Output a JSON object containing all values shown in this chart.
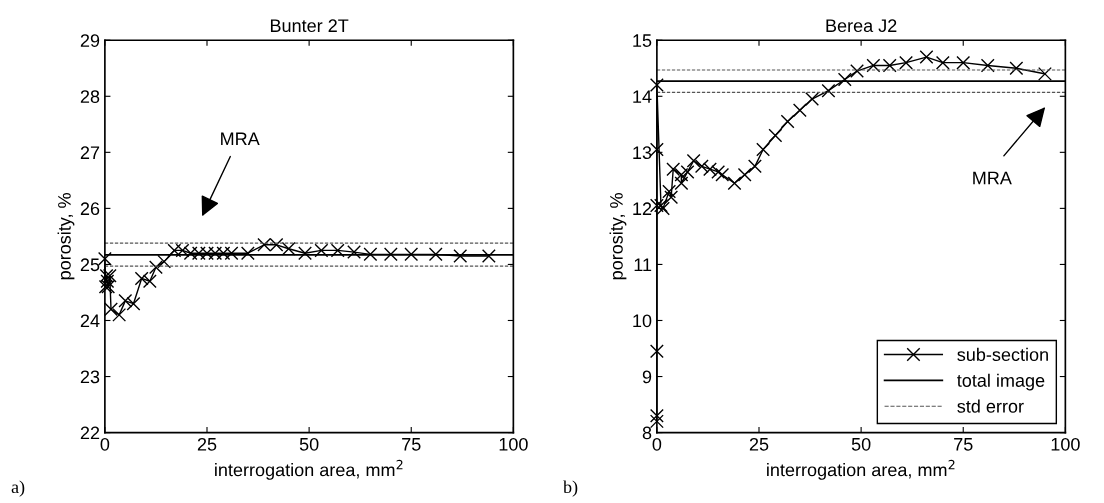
{
  "chart_data": [
    {
      "type": "line",
      "title": "Bunter 2T",
      "xlabel": "interrogation area, mm$^{2}$",
      "ylabel": "porosity, %",
      "marker": "cross",
      "grid": false,
      "legend": false,
      "xlim": [
        0,
        100
      ],
      "xticks": [
        0,
        25,
        50,
        75,
        100
      ],
      "ylim": [
        22,
        29
      ],
      "yticks": [
        22,
        23,
        24,
        25,
        26,
        27,
        28,
        29
      ],
      "series": [
        {
          "color": "#000000",
          "x": [
            0,
            0.2,
            0.4,
            0.6,
            0.8,
            1.2,
            1.5,
            3.5,
            5,
            7,
            9,
            11,
            12.5,
            14.5,
            17,
            19,
            21,
            23,
            25,
            27,
            29,
            31,
            35,
            39,
            42,
            45,
            49,
            53,
            57,
            61,
            65,
            70,
            75,
            81,
            87,
            94
          ],
          "values": [
            25.1,
            24.6,
            24.8,
            24.7,
            24.6,
            24.8,
            24.2,
            24.1,
            24.35,
            24.3,
            24.75,
            24.7,
            24.95,
            25.05,
            25.25,
            25.25,
            25.2,
            25.2,
            25.2,
            25.2,
            25.2,
            25.2,
            25.2,
            25.35,
            25.35,
            25.28,
            25.2,
            25.25,
            25.25,
            25.22,
            25.18,
            25.18,
            25.18,
            25.18,
            25.15,
            25.15
          ]
        }
      ],
      "ref_lines": [
        {
          "axis": "y",
          "value": 25.17,
          "color": "#000000",
          "line_style": "solid"
        },
        {
          "axis": "y",
          "value": 25.38,
          "color": "#555555",
          "line_style": "dashed"
        },
        {
          "axis": "y",
          "value": 24.97,
          "color": "#555555",
          "line_style": "dashed"
        }
      ],
      "annotations": [
        "MRA",
        "a)"
      ]
    },
    {
      "type": "line",
      "title": "Berea J2",
      "xlabel": "interrogation area, mm$^{2}$",
      "ylabel": "porosity, %",
      "marker": "cross",
      "grid": false,
      "legend": "bottom right",
      "xlim": [
        0,
        100
      ],
      "xticks": [
        0,
        25,
        50,
        75,
        100
      ],
      "ylim": [
        8,
        15
      ],
      "yticks": [
        8,
        9,
        10,
        11,
        12,
        13,
        14,
        15
      ],
      "series": [
        {
          "name": "sub-section",
          "color": "#000000",
          "x": [
            0,
            0,
            0,
            0,
            0,
            0,
            1,
            1.5,
            3,
            3.5,
            4,
            6,
            6,
            7.5,
            9,
            11,
            13,
            15,
            16,
            19,
            21.5,
            24,
            26,
            29,
            32,
            35,
            38,
            42,
            46,
            49,
            53,
            57,
            61,
            66,
            70,
            75,
            81,
            88,
            95
          ],
          "values": [
            8.2,
            8.3,
            9.45,
            12.05,
            13.05,
            14.2,
            12.05,
            12.0,
            12.3,
            12.2,
            12.7,
            12.6,
            12.45,
            12.65,
            12.85,
            12.75,
            12.7,
            12.65,
            12.6,
            12.45,
            12.6,
            12.75,
            13.05,
            13.3,
            13.55,
            13.75,
            13.95,
            14.1,
            14.3,
            14.45,
            14.55,
            14.55,
            14.6,
            14.7,
            14.6,
            14.6,
            14.55,
            14.5,
            14.4
          ]
        }
      ],
      "ref_lines": [
        {
          "axis": "y",
          "value": 14.27,
          "color": "#000000",
          "line_style": "solid",
          "label": "total image"
        },
        {
          "axis": "y",
          "value": 14.47,
          "color": "#555555",
          "line_style": "dashed",
          "label": "std error"
        },
        {
          "axis": "y",
          "value": 14.07,
          "color": "#555555",
          "line_style": "dashed"
        }
      ],
      "annotations": [
        "MRA",
        "b)"
      ]
    }
  ]
}
